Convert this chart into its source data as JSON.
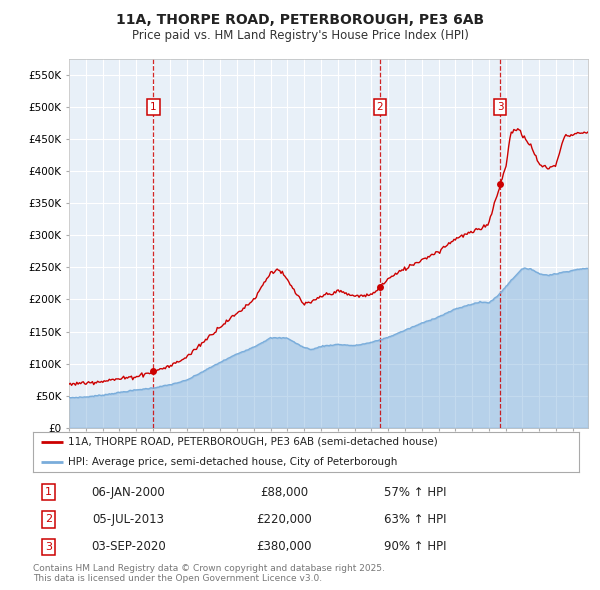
{
  "title_line1": "11A, THORPE ROAD, PETERBOROUGH, PE3 6AB",
  "title_line2": "Price paid vs. HM Land Registry's House Price Index (HPI)",
  "background_color": "#e8f0f8",
  "grid_color": "#ffffff",
  "y_ticks": [
    0,
    50000,
    100000,
    150000,
    200000,
    250000,
    300000,
    350000,
    400000,
    450000,
    500000,
    550000
  ],
  "y_tick_labels": [
    "£0",
    "£50K",
    "£100K",
    "£150K",
    "£200K",
    "£250K",
    "£300K",
    "£350K",
    "£400K",
    "£450K",
    "£500K",
    "£550K"
  ],
  "ylim": [
    0,
    575000
  ],
  "xlim_start": 1995.0,
  "xlim_end": 2025.9,
  "x_ticks": [
    1995,
    1996,
    1997,
    1998,
    1999,
    2000,
    2001,
    2002,
    2003,
    2004,
    2005,
    2006,
    2007,
    2008,
    2009,
    2010,
    2011,
    2012,
    2013,
    2014,
    2015,
    2016,
    2017,
    2018,
    2019,
    2020,
    2021,
    2022,
    2023,
    2024,
    2025
  ],
  "sale_dates": [
    2000.02,
    2013.51,
    2020.67
  ],
  "sale_prices": [
    88000,
    220000,
    380000
  ],
  "sale_labels": [
    "1",
    "2",
    "3"
  ],
  "sale_color": "#cc0000",
  "hpi_color": "#7aaddb",
  "hpi_fill_alpha": 0.45,
  "legend_sale_label": "11A, THORPE ROAD, PETERBOROUGH, PE3 6AB (semi-detached house)",
  "legend_hpi_label": "HPI: Average price, semi-detached house, City of Peterborough",
  "annotation_rows": [
    {
      "num": "1",
      "date": "06-JAN-2000",
      "price": "£88,000",
      "change": "57% ↑ HPI"
    },
    {
      "num": "2",
      "date": "05-JUL-2013",
      "price": "£220,000",
      "change": "63% ↑ HPI"
    },
    {
      "num": "3",
      "date": "03-SEP-2020",
      "price": "£380,000",
      "change": "90% ↑ HPI"
    }
  ],
  "footer_text": "Contains HM Land Registry data © Crown copyright and database right 2025.\nThis data is licensed under the Open Government Licence v3.0.",
  "hpi_anchors_t": [
    1995.0,
    1996.0,
    1997.0,
    1998.0,
    1999.0,
    2000.0,
    2001.0,
    2002.0,
    2003.0,
    2004.0,
    2005.0,
    2006.0,
    2007.0,
    2008.0,
    2008.5,
    2009.0,
    2009.5,
    2010.0,
    2011.0,
    2012.0,
    2013.0,
    2014.0,
    2015.0,
    2016.0,
    2017.0,
    2018.0,
    2019.0,
    2019.5,
    2020.0,
    2020.5,
    2021.0,
    2021.5,
    2022.0,
    2022.5,
    2023.0,
    2023.5,
    2024.0,
    2024.5,
    2025.5
  ],
  "hpi_anchors_v": [
    47000,
    48000,
    51000,
    55000,
    59000,
    62000,
    67000,
    74000,
    88000,
    102000,
    115000,
    126000,
    140000,
    140000,
    132000,
    125000,
    122000,
    127000,
    130000,
    128000,
    133000,
    141000,
    152000,
    163000,
    173000,
    185000,
    193000,
    196000,
    195000,
    205000,
    220000,
    235000,
    248000,
    248000,
    240000,
    238000,
    240000,
    243000,
    248000
  ],
  "red_anchors_t": [
    1995.0,
    1996.0,
    1997.0,
    1998.0,
    1999.0,
    2000.02,
    2001.0,
    2002.0,
    2003.0,
    2004.0,
    2005.0,
    2006.0,
    2007.0,
    2007.5,
    2008.0,
    2008.5,
    2009.0,
    2009.5,
    2010.0,
    2011.0,
    2012.0,
    2013.0,
    2013.51,
    2014.0,
    2015.0,
    2016.0,
    2017.0,
    2018.0,
    2019.0,
    2019.5,
    2020.0,
    2020.67,
    2021.0,
    2021.3,
    2021.7,
    2022.0,
    2022.5,
    2023.0,
    2023.5,
    2024.0,
    2024.5,
    2025.5
  ],
  "red_anchors_v": [
    68000,
    70000,
    73000,
    76000,
    80000,
    88000,
    96000,
    110000,
    134000,
    158000,
    178000,
    200000,
    242000,
    247000,
    230000,
    210000,
    192000,
    196000,
    205000,
    213000,
    205000,
    207000,
    220000,
    232000,
    248000,
    262000,
    275000,
    295000,
    305000,
    310000,
    320000,
    380000,
    405000,
    460000,
    468000,
    455000,
    440000,
    410000,
    405000,
    410000,
    455000,
    460000
  ]
}
